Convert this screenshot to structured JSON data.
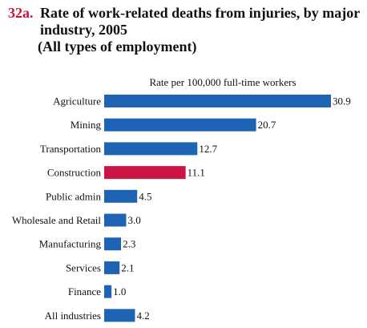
{
  "header": {
    "number": "32a.",
    "title_line1": "Rate of work-related deaths from injuries, by major",
    "title_line2": "industry, 2005",
    "subtitle": "(All types of employment)"
  },
  "chart_data": {
    "type": "bar",
    "orientation": "horizontal",
    "title": "Rate of work-related deaths from injuries, by major industry, 2005",
    "subtitle": "(All types of employment)",
    "xlabel": "Rate per 100,000 full-time workers",
    "ylabel": "",
    "xlim": [
      0,
      30.9
    ],
    "grid": false,
    "legend": "none",
    "categories": [
      "Agriculture",
      "Mining",
      "Transportation",
      "Construction",
      "Public admin",
      "Wholesale and Retail",
      "Manufacturing",
      "Services",
      "Finance",
      "All industries"
    ],
    "values": [
      30.9,
      20.7,
      12.7,
      11.1,
      4.5,
      3.0,
      2.3,
      2.1,
      1.0,
      4.2
    ],
    "value_labels": [
      "30.9",
      "20.7",
      "12.7",
      "11.1",
      "4.5",
      "3.0",
      "2.3",
      "2.1",
      "1.0",
      "4.2"
    ],
    "highlight_category": "Construction",
    "colors": {
      "bar": "#1f64b4",
      "highlight": "#cc1446"
    }
  }
}
